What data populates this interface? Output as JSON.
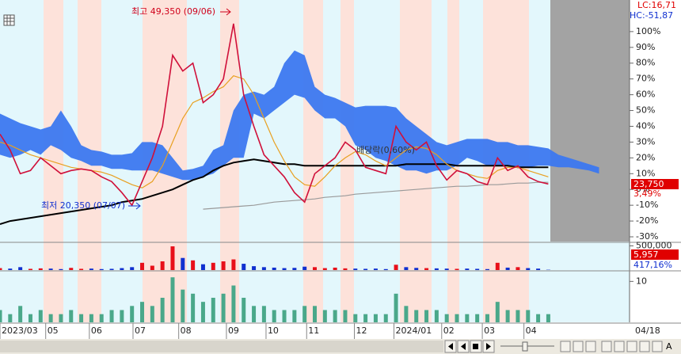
{
  "chart_data": [
    {
      "type": "line",
      "x": [
        0,
        1,
        2,
        3,
        4,
        5,
        6,
        7,
        8,
        9,
        10,
        11,
        12,
        13,
        14,
        15,
        16,
        17,
        18,
        19,
        20,
        21,
        22,
        23,
        24,
        25,
        26,
        27,
        28,
        29,
        30,
        31,
        32,
        33,
        34,
        35,
        36,
        37,
        38,
        39,
        40,
        41,
        42,
        43,
        44,
        45,
        46,
        47,
        48,
        49,
        50,
        51,
        52,
        53,
        54
      ],
      "xlim": [
        0,
        62
      ],
      "xticks": [
        {
          "value": 0,
          "label": "2023/03"
        },
        {
          "value": 4.5,
          "label": "05"
        },
        {
          "value": 8.8,
          "label": "06"
        },
        {
          "value": 13.1,
          "label": "07"
        },
        {
          "value": 17.6,
          "label": "08"
        },
        {
          "value": 22.3,
          "label": "09"
        },
        {
          "value": 26.2,
          "label": "10"
        },
        {
          "value": 30.2,
          "label": "11"
        },
        {
          "value": 34.9,
          "label": "12"
        },
        {
          "value": 38.8,
          "label": "2024/01"
        },
        {
          "value": 43.5,
          "label": "02"
        },
        {
          "value": 47.5,
          "label": "03"
        },
        {
          "value": 51.6,
          "label": "04"
        }
      ],
      "current_date": "04/18",
      "ylim": [
        -33,
        119
      ],
      "yticks": [
        {
          "value": 100,
          "label": "100%"
        },
        {
          "value": 90,
          "label": "90%"
        },
        {
          "value": 80,
          "label": "80%"
        },
        {
          "value": 70,
          "label": "70%"
        },
        {
          "value": 60,
          "label": "60%"
        },
        {
          "value": 50,
          "label": "50%"
        },
        {
          "value": 40,
          "label": "40%"
        },
        {
          "value": 30,
          "label": "30%"
        },
        {
          "value": 20,
          "label": "20%"
        },
        {
          "value": 10,
          "label": "10%"
        },
        {
          "value": 0,
          "label": "0%"
        },
        {
          "value": -10,
          "label": "-10%"
        },
        {
          "value": -20,
          "label": "-20%"
        },
        {
          "value": -30,
          "label": "-30%"
        }
      ],
      "series": [
        {
          "color": "#d0103a",
          "values": [
            35,
            25,
            10,
            12,
            20,
            15,
            10,
            12,
            13,
            12,
            8,
            5,
            -2,
            -10,
            5,
            20,
            40,
            85,
            75,
            80,
            55,
            60,
            70,
            105,
            60,
            40,
            22,
            15,
            8,
            -2,
            -8,
            10,
            15,
            20,
            30,
            25,
            14,
            12,
            10,
            40,
            30,
            25,
            30,
            15,
            6,
            12,
            10,
            5,
            3,
            20,
            12,
            15,
            8,
            5,
            3.49
          ]
        },
        {
          "color": "#e8a020",
          "values": [
            30,
            28,
            25,
            22,
            20,
            18,
            16,
            14,
            13,
            12,
            11,
            9,
            6,
            3,
            1,
            5,
            15,
            30,
            45,
            55,
            58,
            62,
            65,
            72,
            70,
            60,
            45,
            30,
            18,
            8,
            3,
            2,
            8,
            15,
            20,
            24,
            22,
            18,
            15,
            20,
            25,
            27,
            26,
            22,
            16,
            12,
            10,
            8,
            7,
            12,
            14,
            14,
            12,
            10,
            8
          ]
        },
        {
          "color": "#000000",
          "values": [
            -22,
            -20,
            -19,
            -18,
            -17,
            -16,
            -15,
            -14,
            -13,
            -12,
            -11,
            -10,
            -8,
            -7,
            -6,
            -4,
            -2,
            0,
            3,
            6,
            8,
            12,
            15,
            17,
            18,
            19,
            18,
            17,
            16,
            16,
            15,
            15,
            15,
            15,
            15,
            15,
            15,
            15,
            15,
            15,
            16,
            16,
            16,
            16,
            16,
            15,
            15,
            15,
            15,
            15,
            15,
            14,
            14,
            14,
            14
          ]
        },
        {
          "color": "#9a9a9a",
          "values": [
            null,
            null,
            null,
            null,
            null,
            null,
            null,
            null,
            null,
            null,
            null,
            null,
            null,
            null,
            null,
            null,
            null,
            null,
            null,
            null,
            -12.5,
            -12,
            -11.5,
            -11,
            -10.5,
            -10,
            -9,
            -8,
            -7.5,
            -7,
            -6.5,
            -6,
            -5,
            -4.5,
            -4,
            -3,
            -2.5,
            -2,
            -1.5,
            -1,
            -0.5,
            0,
            0.5,
            1,
            1.5,
            2,
            2,
            2.5,
            3,
            3,
            3.5,
            4,
            4,
            4.5,
            4.5
          ]
        }
      ],
      "cloud": {
        "color": "#3c78f0",
        "x": [
          0,
          1,
          2,
          3,
          4,
          5,
          6,
          7,
          8,
          9,
          10,
          11,
          12,
          13,
          14,
          15,
          16,
          17,
          18,
          19,
          20,
          21,
          22,
          23,
          24,
          25,
          26,
          27,
          28,
          29,
          30,
          31,
          32,
          33,
          34,
          35,
          36,
          37,
          38,
          39,
          40,
          41,
          42,
          43,
          44,
          45,
          46,
          47,
          48,
          49,
          50,
          51,
          52,
          53,
          54,
          55,
          56,
          57,
          58,
          59
        ],
        "upper": [
          48,
          45,
          42,
          40,
          38,
          40,
          50,
          40,
          28,
          25,
          24,
          22,
          22,
          23,
          30,
          30,
          28,
          20,
          12,
          13,
          15,
          25,
          28,
          50,
          60,
          62,
          60,
          65,
          80,
          88,
          85,
          65,
          60,
          58,
          55,
          52,
          53,
          53,
          53,
          52,
          45,
          40,
          35,
          30,
          28,
          30,
          32,
          32,
          32,
          30,
          30,
          28,
          28,
          27,
          26,
          22,
          20,
          18,
          16,
          14
        ],
        "lower": [
          22,
          20,
          22,
          25,
          22,
          28,
          25,
          20,
          18,
          15,
          15,
          13,
          13,
          12,
          12,
          12,
          10,
          8,
          6,
          6,
          8,
          10,
          15,
          20,
          20,
          48,
          45,
          50,
          55,
          60,
          58,
          50,
          45,
          45,
          40,
          28,
          25,
          20,
          18,
          15,
          12,
          12,
          10,
          12,
          12,
          15,
          20,
          18,
          15,
          15,
          15,
          14,
          14,
          15,
          15,
          14,
          14,
          13,
          12,
          10
        ]
      },
      "annotations": {
        "high": "최고 49,350 (09/06)",
        "low": "최저 20,350 (07/07)",
        "dividend": "배당락(0,60%)"
      },
      "latest_price": "23,750",
      "latest_change": "3,49%",
      "lc": "LC:16,71",
      "hc": "HC:-51,87"
    },
    {
      "type": "bar",
      "up_color": "#e8101a",
      "down_color": "#1030d0",
      "values": [
        40000,
        30000,
        60000,
        25000,
        35000,
        30000,
        20000,
        45000,
        25000,
        30000,
        20000,
        25000,
        40000,
        60000,
        150000,
        90000,
        180000,
        490000,
        250000,
        200000,
        120000,
        150000,
        180000,
        220000,
        130000,
        80000,
        60000,
        50000,
        40000,
        45000,
        70000,
        60000,
        40000,
        50000,
        35000,
        30000,
        25000,
        30000,
        20000,
        110000,
        60000,
        45000,
        40000,
        35000,
        30000,
        25000,
        30000,
        25000,
        20000,
        150000,
        50000,
        60000,
        40000,
        30000,
        5957
      ],
      "ylim": [
        0,
        540000
      ],
      "yticks": [
        {
          "value": 500000,
          "label": "500,000"
        }
      ],
      "latest_volume": "5,957",
      "latest_ratio": "417,16%"
    },
    {
      "type": "bar",
      "color": "#4aa88a",
      "values": [
        3,
        2,
        4,
        2,
        3,
        2,
        2,
        3,
        2,
        2,
        2,
        3,
        3,
        4,
        5,
        4,
        6,
        11,
        8,
        7,
        5,
        6,
        7,
        9,
        6,
        4,
        4,
        3,
        3,
        3,
        4,
        4,
        3,
        3,
        3,
        2,
        2,
        2,
        2,
        7,
        4,
        3,
        3,
        3,
        2,
        2,
        2,
        2,
        2,
        5,
        3,
        3,
        3,
        2,
        2
      ],
      "ylim": [
        0,
        12
      ],
      "yticks": [
        10
      ]
    }
  ],
  "ui": {
    "font_button": "A"
  }
}
